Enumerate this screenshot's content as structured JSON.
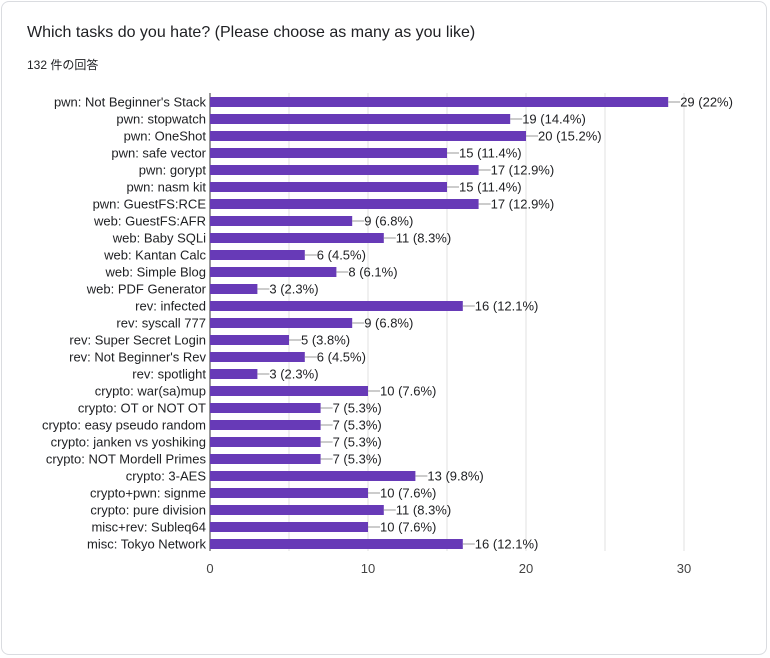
{
  "question": {
    "title": "Which tasks do you hate? (Please choose as many as you like)",
    "responses": "132 件の回答"
  },
  "colors": {
    "bar": "#673ab7",
    "grid": "#e0e0e0",
    "axis": "#333333",
    "text": "#202124",
    "tick": "#444444"
  },
  "chart_data": {
    "type": "bar",
    "orientation": "horizontal",
    "xlim": [
      0,
      30
    ],
    "xticks": [
      0,
      10,
      20,
      30
    ],
    "categories": [
      "pwn: Not Beginner's Stack",
      "pwn: stopwatch",
      "pwn: OneShot",
      "pwn: safe vector",
      "pwn: gorypt",
      "pwn: nasm kit",
      "pwn: GuestFS:RCE",
      "web: GuestFS:AFR",
      "web: Baby SQLi",
      "web: Kantan Calc",
      "web: Simple Blog",
      "web: PDF Generator",
      "rev: infected",
      "rev: syscall 777",
      "rev: Super Secret Login",
      "rev: Not Beginner's Rev",
      "rev: spotlight",
      "crypto: war(sa)mup",
      "crypto: OT or NOT OT",
      "crypto: easy pseudo random",
      "crypto: janken vs yoshiking",
      "crypto: NOT Mordell Primes",
      "crypto: 3-AES",
      "crypto+pwn: signme",
      "crypto: pure division",
      "misc+rev: Subleq64",
      "misc: Tokyo Network"
    ],
    "values": [
      29,
      19,
      20,
      15,
      17,
      15,
      17,
      9,
      11,
      6,
      8,
      3,
      16,
      9,
      5,
      6,
      3,
      10,
      7,
      7,
      7,
      7,
      13,
      10,
      11,
      10,
      16
    ],
    "data_labels": [
      "29 (22%)",
      "19 (14.4%)",
      "20 (15.2%)",
      "15 (11.4%)",
      "17 (12.9%)",
      "15 (11.4%)",
      "17 (12.9%)",
      "9 (6.8%)",
      "11 (8.3%)",
      "6 (4.5%)",
      "8 (6.1%)",
      "3 (2.3%)",
      "16 (12.1%)",
      "9 (6.8%)",
      "5 (3.8%)",
      "6 (4.5%)",
      "3 (2.3%)",
      "10 (7.6%)",
      "7 (5.3%)",
      "7 (5.3%)",
      "7 (5.3%)",
      "7 (5.3%)",
      "13 (9.8%)",
      "10 (7.6%)",
      "11 (8.3%)",
      "10 (7.6%)",
      "16 (12.1%)"
    ],
    "grid": true
  }
}
